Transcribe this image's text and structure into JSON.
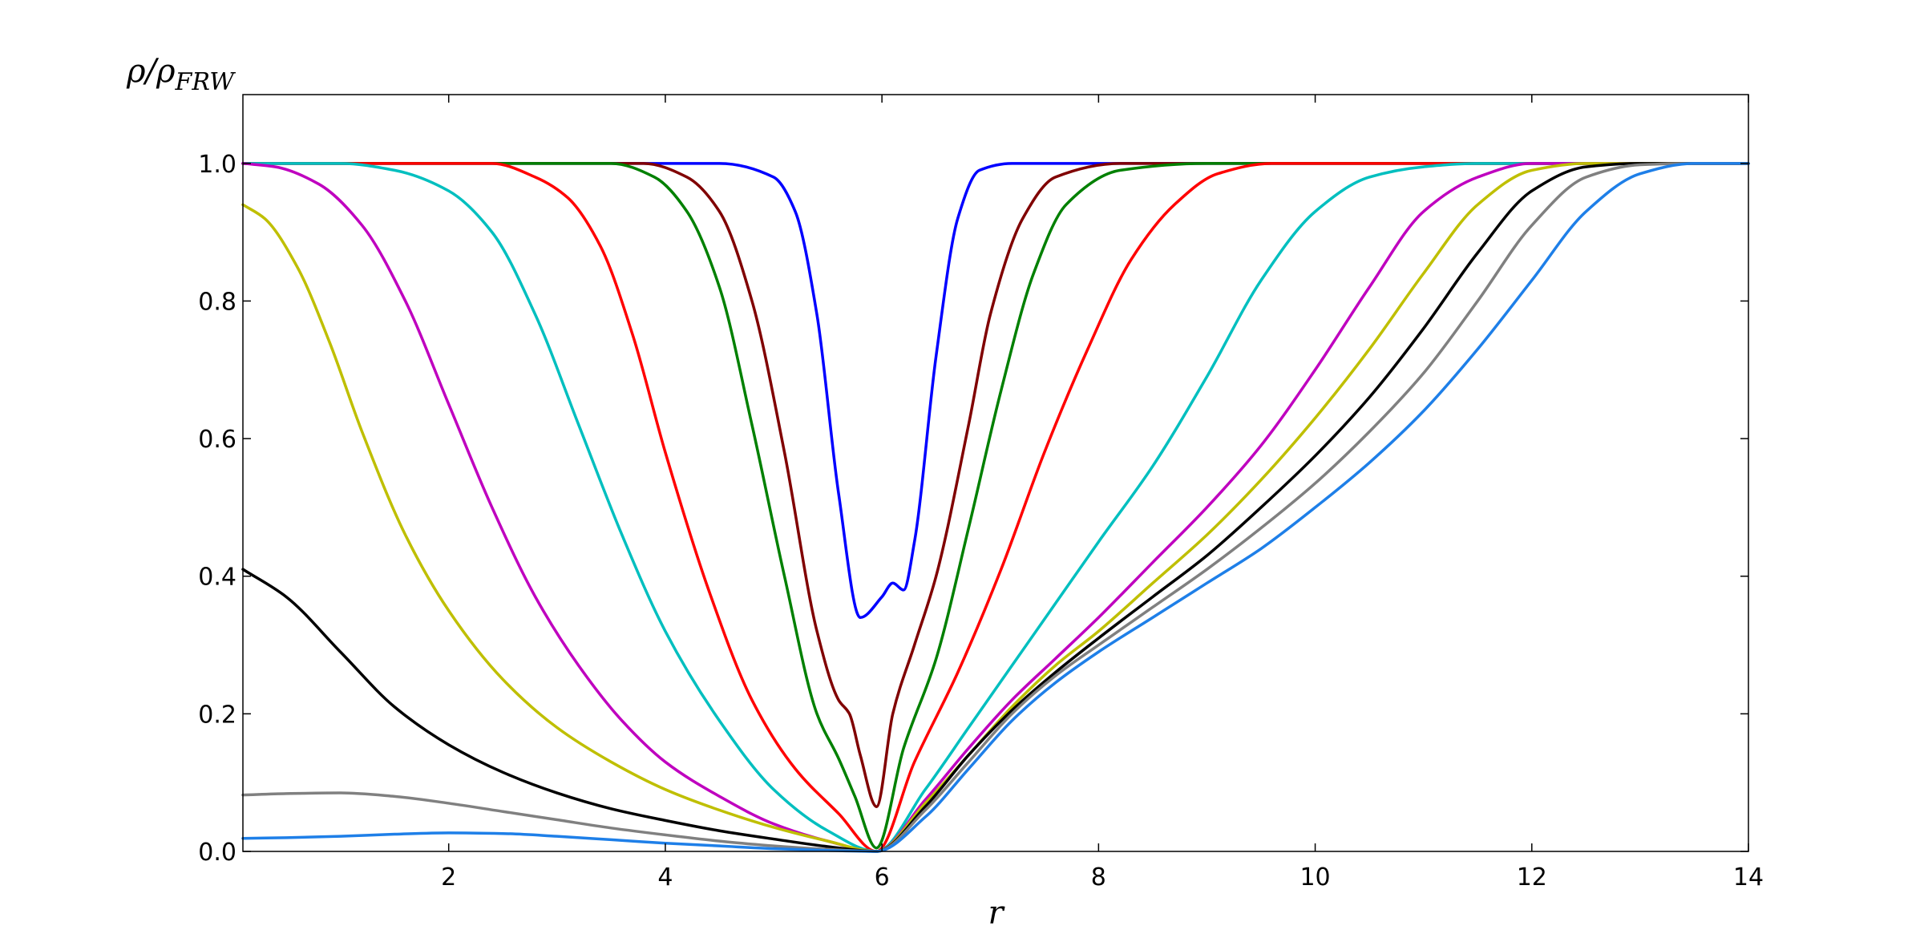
{
  "chart_data": {
    "type": "line",
    "title": "",
    "xlabel": "r",
    "ylabel": {
      "base": "ρ/ρ",
      "subscript": "FRW"
    },
    "xlim": [
      0.1,
      14
    ],
    "ylim": [
      0,
      1.1
    ],
    "xticks": [
      2,
      4,
      6,
      8,
      10,
      12,
      14
    ],
    "xtick_labels": [
      "2",
      "4",
      "6",
      "8",
      "10",
      "12",
      "14"
    ],
    "yticks": [
      0.0,
      0.2,
      0.4,
      0.6,
      0.8,
      1.0
    ],
    "ytick_labels": [
      "0.0",
      "0.2",
      "0.4",
      "0.6",
      "0.8",
      "1.0"
    ],
    "grid": false,
    "legend": "none",
    "series": [
      {
        "color": "#0000ff",
        "x": [
          0.1,
          4.5,
          5.0,
          5.2,
          5.4,
          5.6,
          5.8,
          6.0,
          6.1,
          6.2,
          6.3,
          6.5,
          6.7,
          6.9,
          7.2,
          14
        ],
        "y": [
          1.0,
          1.0,
          0.98,
          0.93,
          0.78,
          0.52,
          0.34,
          0.37,
          0.39,
          0.38,
          0.45,
          0.72,
          0.92,
          0.99,
          1.0,
          1.0
        ]
      },
      {
        "color": "#800000",
        "x": [
          0.1,
          3.8,
          4.2,
          4.5,
          4.8,
          5.1,
          5.4,
          5.6,
          5.7,
          5.8,
          5.95,
          6.1,
          6.3,
          6.5,
          6.8,
          7.0,
          7.3,
          7.6,
          8.2,
          14
        ],
        "y": [
          1.0,
          1.0,
          0.98,
          0.93,
          0.8,
          0.58,
          0.32,
          0.22,
          0.2,
          0.14,
          0.065,
          0.2,
          0.3,
          0.4,
          0.62,
          0.78,
          0.92,
          0.98,
          1.0,
          1.0
        ]
      },
      {
        "color": "#008000",
        "x": [
          0.1,
          3.5,
          3.9,
          4.2,
          4.5,
          4.8,
          5.1,
          5.4,
          5.6,
          5.75,
          5.95,
          6.2,
          6.5,
          6.8,
          7.1,
          7.4,
          7.7,
          8.2,
          9.0,
          14
        ],
        "y": [
          1.0,
          1.0,
          0.98,
          0.93,
          0.82,
          0.62,
          0.4,
          0.2,
          0.135,
          0.08,
          0.005,
          0.15,
          0.28,
          0.47,
          0.67,
          0.84,
          0.94,
          0.99,
          1.0,
          1.0
        ]
      },
      {
        "color": "#ff0000",
        "x": [
          0.1,
          2.4,
          2.8,
          3.1,
          3.4,
          3.7,
          4.0,
          4.4,
          4.8,
          5.2,
          5.6,
          5.95,
          6.3,
          6.7,
          7.1,
          7.5,
          7.9,
          8.3,
          8.7,
          9.1,
          9.6,
          10.2,
          14
        ],
        "y": [
          1.0,
          1.0,
          0.98,
          0.95,
          0.88,
          0.75,
          0.58,
          0.38,
          0.22,
          0.12,
          0.055,
          0.0,
          0.13,
          0.26,
          0.41,
          0.58,
          0.73,
          0.86,
          0.94,
          0.985,
          1.0,
          1.0,
          1.0
        ]
      },
      {
        "color": "#00bfbf",
        "x": [
          0.1,
          1.0,
          1.5,
          2.0,
          2.4,
          2.8,
          3.2,
          3.6,
          4.0,
          4.5,
          5.0,
          5.5,
          5.95,
          6.4,
          6.8,
          7.2,
          7.6,
          8.0,
          8.5,
          9.0,
          9.5,
          10.0,
          10.5,
          11.0,
          11.5,
          14
        ],
        "y": [
          1.0,
          1.0,
          0.99,
          0.96,
          0.9,
          0.78,
          0.62,
          0.46,
          0.32,
          0.19,
          0.09,
          0.03,
          0.0,
          0.09,
          0.18,
          0.27,
          0.36,
          0.45,
          0.56,
          0.69,
          0.83,
          0.93,
          0.98,
          0.995,
          1.0,
          1.0
        ]
      },
      {
        "color": "#bf00bf",
        "x": [
          0.1,
          0.4,
          0.8,
          1.2,
          1.6,
          2.0,
          2.4,
          2.8,
          3.2,
          3.6,
          4.0,
          4.5,
          5.0,
          5.5,
          5.95,
          6.4,
          6.8,
          7.2,
          7.6,
          8.0,
          8.5,
          9.0,
          9.5,
          10.0,
          10.5,
          11.0,
          11.5,
          12.0,
          14
        ],
        "y": [
          1.0,
          0.995,
          0.97,
          0.91,
          0.8,
          0.65,
          0.5,
          0.37,
          0.27,
          0.19,
          0.13,
          0.08,
          0.04,
          0.015,
          0.0,
          0.075,
          0.15,
          0.22,
          0.28,
          0.34,
          0.42,
          0.5,
          0.59,
          0.7,
          0.82,
          0.93,
          0.98,
          1.0,
          1.0
        ]
      },
      {
        "color": "#bfbf00",
        "x": [
          0.1,
          0.3,
          0.6,
          0.9,
          1.2,
          1.6,
          2.0,
          2.5,
          3.0,
          3.5,
          4.0,
          4.5,
          5.0,
          5.5,
          5.95,
          6.4,
          6.8,
          7.2,
          7.6,
          8.0,
          8.5,
          9.0,
          9.5,
          10.0,
          10.5,
          11.0,
          11.5,
          12.0,
          12.5,
          14
        ],
        "y": [
          0.94,
          0.92,
          0.85,
          0.74,
          0.61,
          0.46,
          0.35,
          0.25,
          0.18,
          0.13,
          0.09,
          0.06,
          0.035,
          0.015,
          0.0,
          0.07,
          0.14,
          0.21,
          0.27,
          0.32,
          0.39,
          0.46,
          0.54,
          0.63,
          0.73,
          0.84,
          0.94,
          0.99,
          1.0,
          1.0
        ]
      },
      {
        "color": "#000000",
        "x": [
          0.1,
          0.5,
          1.0,
          1.5,
          2.0,
          2.5,
          3.0,
          3.5,
          4.0,
          4.5,
          5.0,
          5.5,
          5.95,
          6.4,
          6.8,
          7.2,
          7.6,
          8.0,
          8.5,
          9.0,
          9.5,
          10.0,
          10.5,
          11.0,
          11.5,
          12.0,
          12.5,
          13.0,
          14
        ],
        "y": [
          0.41,
          0.37,
          0.29,
          0.21,
          0.155,
          0.115,
          0.085,
          0.062,
          0.045,
          0.03,
          0.018,
          0.007,
          0.0,
          0.065,
          0.14,
          0.205,
          0.26,
          0.31,
          0.37,
          0.43,
          0.5,
          0.575,
          0.66,
          0.76,
          0.87,
          0.96,
          0.995,
          1.0,
          1.0
        ]
      },
      {
        "color": "#808080",
        "x": [
          0.1,
          0.5,
          1.0,
          1.5,
          2.0,
          2.5,
          3.0,
          3.5,
          4.0,
          4.5,
          5.0,
          5.5,
          5.95,
          6.4,
          6.8,
          7.2,
          7.6,
          8.0,
          8.5,
          9.0,
          9.5,
          10.0,
          10.5,
          11.0,
          11.5,
          12.0,
          12.5,
          13.0,
          13.5,
          14
        ],
        "y": [
          0.082,
          0.084,
          0.085,
          0.08,
          0.07,
          0.058,
          0.046,
          0.034,
          0.024,
          0.015,
          0.008,
          0.003,
          0.0,
          0.06,
          0.13,
          0.2,
          0.255,
          0.3,
          0.355,
          0.41,
          0.47,
          0.535,
          0.61,
          0.695,
          0.8,
          0.91,
          0.98,
          0.998,
          1.0,
          1.0
        ]
      },
      {
        "color": "#1e7fe8",
        "x": [
          0.1,
          0.5,
          1.0,
          1.5,
          2.0,
          2.5,
          3.0,
          3.5,
          4.0,
          4.5,
          5.0,
          5.5,
          5.95,
          6.4,
          6.8,
          7.2,
          7.6,
          8.0,
          8.5,
          9.0,
          9.5,
          10.0,
          10.5,
          11.0,
          11.5,
          12.0,
          12.5,
          13.0,
          13.5,
          14
        ],
        "y": [
          0.019,
          0.02,
          0.022,
          0.025,
          0.027,
          0.026,
          0.022,
          0.017,
          0.012,
          0.008,
          0.004,
          0.0015,
          0.0,
          0.05,
          0.12,
          0.19,
          0.245,
          0.29,
          0.34,
          0.39,
          0.44,
          0.5,
          0.565,
          0.64,
          0.73,
          0.83,
          0.93,
          0.985,
          1.0,
          1.0
        ]
      }
    ]
  }
}
